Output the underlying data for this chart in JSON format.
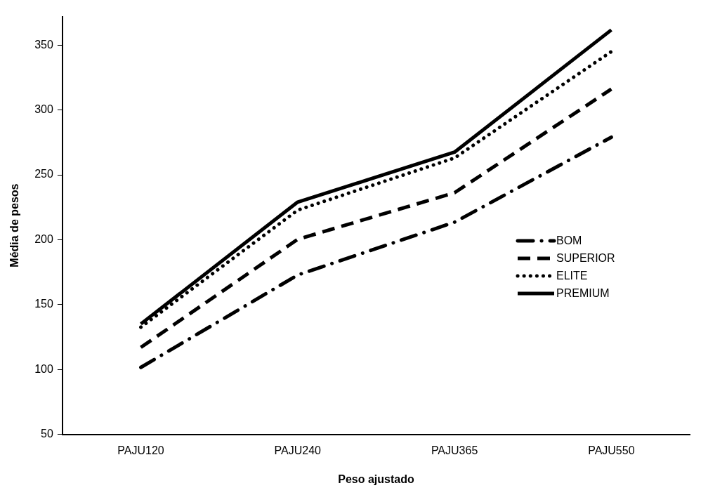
{
  "chart_data": {
    "type": "line",
    "xlabel": "Peso ajustado",
    "ylabel": "Média de pesos",
    "categories": [
      "PAJU120",
      "PAJU240",
      "PAJU365",
      "PAJU550"
    ],
    "series": [
      {
        "name": "BOM",
        "color": "#000000",
        "line_style": "dashdot",
        "values": [
          101.6,
          172.8,
          213.5,
          279
        ]
      },
      {
        "name": "SUPERIOR",
        "color": "#000000",
        "line_style": "dashed",
        "values": [
          117,
          200.3,
          236.2,
          316.1
        ]
      },
      {
        "name": "ELITE",
        "color": "#000000",
        "line_style": "dotted",
        "values": [
          132.6,
          222.8,
          263,
          345
        ]
      },
      {
        "name": "PREMIUM",
        "color": "#000000",
        "line_style": "solid",
        "values": [
          135.1,
          229,
          267.5,
          361.7
        ]
      }
    ],
    "ylim": [
      50,
      372
    ],
    "yticks": [
      50,
      100,
      150,
      200,
      250,
      300,
      350
    ],
    "grid": false,
    "legend": "right",
    "marker": "none"
  }
}
